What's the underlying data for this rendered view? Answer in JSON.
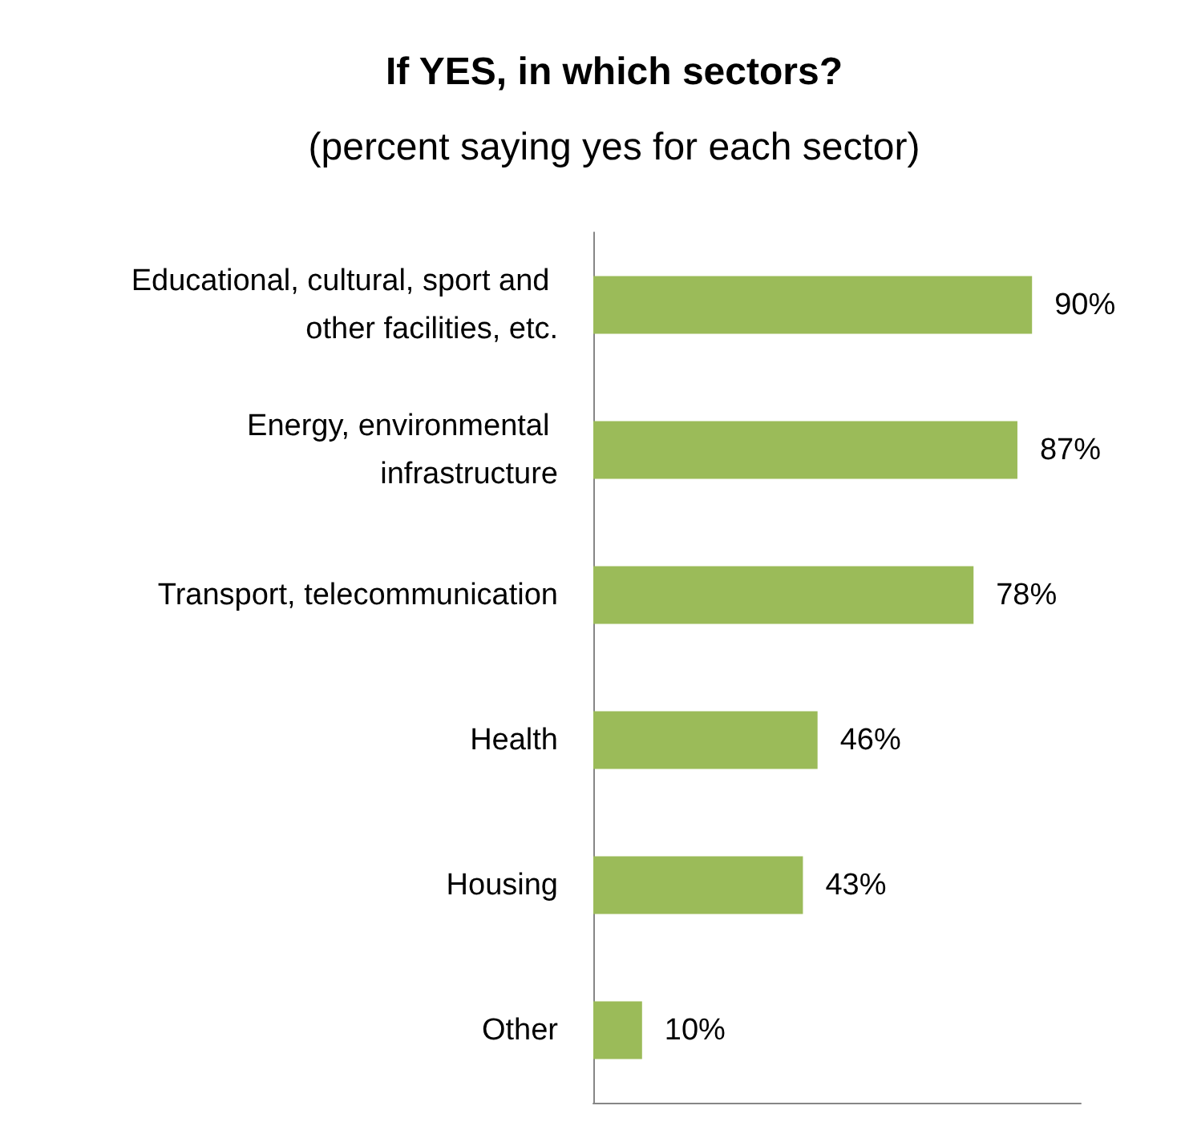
{
  "chart_data": {
    "type": "bar",
    "orientation": "horizontal",
    "title": "If YES, in which sectors?",
    "subtitle": "(percent saying yes for each sector)",
    "categories": [
      "Educational, cultural, sport and other facilities, etc.",
      "Energy, environmental infrastructure",
      "Transport, telecommunication",
      "Health",
      "Housing",
      "Other"
    ],
    "values": [
      90,
      87,
      78,
      46,
      43,
      10
    ],
    "value_labels": [
      "90%",
      "87%",
      "78%",
      "46%",
      "43%",
      "10%"
    ],
    "color": "#9bbb59",
    "xlim": [
      0,
      100
    ],
    "tick_labels": "y"
  }
}
